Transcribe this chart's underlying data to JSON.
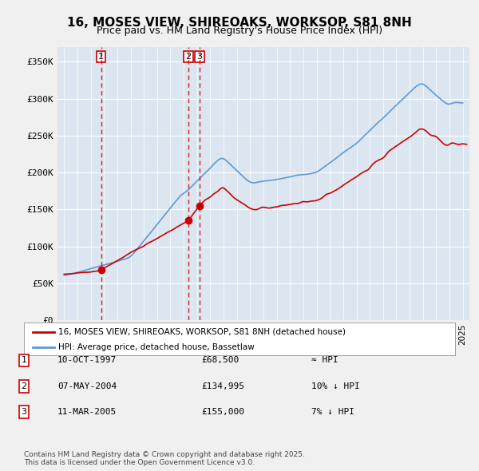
{
  "title_line1": "16, MOSES VIEW, SHIREOAKS, WORKSOP, S81 8NH",
  "title_line2": "Price paid vs. HM Land Registry's House Price Index (HPI)",
  "ylabel": "",
  "xlabel": "",
  "ylim": [
    0,
    370000
  ],
  "yticks": [
    0,
    50000,
    100000,
    150000,
    200000,
    250000,
    300000,
    350000
  ],
  "ytick_labels": [
    "£0",
    "£50K",
    "£100K",
    "£150K",
    "£200K",
    "£250K",
    "£300K",
    "£350K"
  ],
  "xlim_start": 1994.5,
  "xlim_end": 2025.5,
  "background_color": "#dce6f0",
  "plot_bg_color": "#dce6f0",
  "grid_color": "#ffffff",
  "red_color": "#cc0000",
  "blue_color": "#5b9bd5",
  "transactions": [
    {
      "num": 1,
      "date": "10-OCT-1997",
      "price": 68500,
      "year": 1997.78,
      "label": "≈ HPI"
    },
    {
      "num": 2,
      "date": "07-MAY-2004",
      "price": 134995,
      "year": 2004.35,
      "label": "10% ↓ HPI"
    },
    {
      "num": 3,
      "date": "11-MAR-2005",
      "price": 155000,
      "year": 2005.19,
      "label": "7% ↓ HPI"
    }
  ],
  "legend_line1": "16, MOSES VIEW, SHIREOAKS, WORKSOP, S81 8NH (detached house)",
  "legend_line2": "HPI: Average price, detached house, Bassetlaw",
  "footer": "Contains HM Land Registry data © Crown copyright and database right 2025.\nThis data is licensed under the Open Government Licence v3.0."
}
